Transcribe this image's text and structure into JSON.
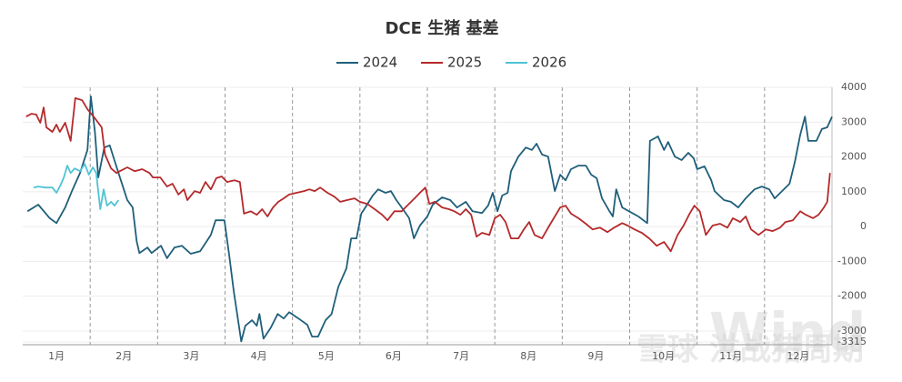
{
  "chart_data": {
    "type": "line",
    "title": "DCE 生猪 基差",
    "watermarks": [
      "雪球 洪战猪周期",
      "Wind"
    ],
    "xlim": [
      0,
      12
    ],
    "xticks": [
      {
        "value": 0.5,
        "label": "1月"
      },
      {
        "value": 1.5,
        "label": "2月"
      },
      {
        "value": 2.5,
        "label": "3月"
      },
      {
        "value": 3.5,
        "label": "4月"
      },
      {
        "value": 4.5,
        "label": "5月"
      },
      {
        "value": 5.5,
        "label": "6月"
      },
      {
        "value": 6.5,
        "label": "7月"
      },
      {
        "value": 7.5,
        "label": "8月"
      },
      {
        "value": 8.5,
        "label": "9月"
      },
      {
        "value": 9.5,
        "label": "10月"
      },
      {
        "value": 10.5,
        "label": "11月"
      },
      {
        "value": 11.5,
        "label": "12月"
      }
    ],
    "ylim": [
      -3315,
      4000
    ],
    "yticks": [
      -3315,
      -3000,
      -2000,
      -1000,
      0,
      1000,
      2000,
      3000,
      4000
    ],
    "grid": true,
    "legend": "top",
    "series": [
      {
        "name": "2024",
        "color": "#1f5f7a",
        "x": [
          0.07,
          0.23,
          0.4,
          0.5,
          0.63,
          0.74,
          0.85,
          0.96,
          1.01,
          1.07,
          1.12,
          1.21,
          1.29,
          1.42,
          1.55,
          1.63,
          1.69,
          1.73,
          1.85,
          1.91,
          2.05,
          2.14,
          2.25,
          2.36,
          2.49,
          2.63,
          2.79,
          2.86,
          2.99,
          3.06,
          3.13,
          3.2,
          3.24,
          3.3,
          3.4,
          3.47,
          3.51,
          3.57,
          3.68,
          3.78,
          3.87,
          3.95,
          4.09,
          4.22,
          4.29,
          4.38,
          4.49,
          4.58,
          4.68,
          4.8,
          4.87,
          4.95,
          5.02,
          5.08,
          5.19,
          5.27,
          5.38,
          5.46,
          5.54,
          5.62,
          5.73,
          5.8,
          5.89,
          6.0,
          6.08,
          6.22,
          6.34,
          6.44,
          6.57,
          6.67,
          6.81,
          6.9,
          6.97,
          7.04,
          7.11,
          7.19,
          7.24,
          7.35,
          7.46,
          7.55,
          7.62,
          7.7,
          7.79,
          7.89,
          7.97,
          8.05,
          8.13,
          8.24,
          8.35,
          8.43,
          8.51,
          8.59,
          8.7,
          8.75,
          8.8,
          8.89,
          8.99,
          9.13,
          9.26,
          9.3,
          9.42,
          9.51,
          9.57,
          9.67,
          9.77,
          9.87,
          9.95,
          10.0,
          10.11,
          10.21,
          10.26,
          10.4,
          10.5,
          10.61,
          10.72,
          10.85,
          10.96,
          11.07,
          11.15,
          11.26,
          11.37,
          11.45,
          11.53,
          11.6,
          11.65,
          11.77,
          11.85,
          11.93,
          12.0
        ],
        "values": [
          440,
          630,
          240,
          100,
          550,
          1070,
          1540,
          2200,
          3740,
          2720,
          1410,
          2270,
          2330,
          1540,
          760,
          550,
          -420,
          -760,
          -600,
          -760,
          -550,
          -910,
          -600,
          -550,
          -780,
          -710,
          -240,
          180,
          180,
          -810,
          -1860,
          -2770,
          -3300,
          -2850,
          -2690,
          -2850,
          -2510,
          -3220,
          -2900,
          -2510,
          -2640,
          -2460,
          -2640,
          -2820,
          -3160,
          -3160,
          -2690,
          -2510,
          -1730,
          -1200,
          -340,
          -340,
          370,
          550,
          890,
          1070,
          970,
          1020,
          760,
          550,
          240,
          -340,
          30,
          290,
          630,
          840,
          760,
          550,
          710,
          440,
          390,
          600,
          970,
          440,
          890,
          970,
          1590,
          2010,
          2270,
          2200,
          2380,
          2070,
          2010,
          1020,
          1490,
          1330,
          1650,
          1750,
          1750,
          1490,
          1390,
          810,
          440,
          290,
          1070,
          550,
          440,
          290,
          100,
          2460,
          2590,
          2200,
          2430,
          2010,
          1910,
          2120,
          1960,
          1650,
          1730,
          1330,
          1020,
          760,
          710,
          550,
          810,
          1070,
          1150,
          1070,
          810,
          1020,
          1230,
          1860,
          2640,
          3160,
          2460,
          2460,
          2800,
          2850,
          3160
        ]
      },
      {
        "name": "2025",
        "color": "#b5292b",
        "x": [
          0.05,
          0.13,
          0.2,
          0.26,
          0.31,
          0.35,
          0.44,
          0.5,
          0.55,
          0.63,
          0.71,
          0.78,
          0.88,
          0.96,
          1.07,
          1.17,
          1.22,
          1.31,
          1.39,
          1.44,
          1.55,
          1.66,
          1.77,
          1.88,
          1.93,
          2.04,
          2.14,
          2.22,
          2.31,
          2.39,
          2.44,
          2.55,
          2.63,
          2.71,
          2.79,
          2.87,
          2.95,
          3.03,
          3.14,
          3.22,
          3.28,
          3.38,
          3.47,
          3.55,
          3.63,
          3.71,
          3.79,
          3.87,
          3.95,
          4.06,
          4.17,
          4.25,
          4.33,
          4.41,
          4.52,
          4.62,
          4.71,
          4.81,
          4.92,
          5.0,
          5.11,
          5.22,
          5.33,
          5.41,
          5.51,
          5.62,
          5.7,
          5.81,
          5.89,
          5.97,
          6.03,
          6.11,
          6.22,
          6.32,
          6.4,
          6.49,
          6.57,
          6.65,
          6.73,
          6.81,
          6.92,
          7.0,
          7.08,
          7.16,
          7.24,
          7.35,
          7.43,
          7.51,
          7.59,
          7.7,
          7.81,
          7.89,
          7.97,
          8.05,
          8.13,
          8.24,
          8.35,
          8.45,
          8.56,
          8.67,
          8.77,
          8.89,
          8.97,
          9.07,
          9.18,
          9.29,
          9.4,
          9.51,
          9.61,
          9.71,
          9.8,
          9.88,
          9.96,
          10.04,
          10.13,
          10.23,
          10.34,
          10.45,
          10.53,
          10.64,
          10.72,
          10.8,
          10.91,
          11.02,
          11.12,
          11.23,
          11.31,
          11.42,
          11.53,
          11.61,
          11.72,
          11.8,
          11.88,
          11.93,
          11.97
        ],
        "values": [
          3160,
          3240,
          3220,
          2980,
          3420,
          2850,
          2720,
          2930,
          2720,
          2980,
          2460,
          3690,
          3630,
          3370,
          3110,
          2850,
          2070,
          1670,
          1540,
          1590,
          1700,
          1590,
          1650,
          1540,
          1410,
          1410,
          1150,
          1230,
          920,
          1070,
          760,
          1020,
          970,
          1280,
          1070,
          1390,
          1440,
          1280,
          1330,
          1280,
          370,
          440,
          340,
          500,
          290,
          550,
          710,
          810,
          920,
          970,
          1020,
          1070,
          1020,
          1120,
          970,
          860,
          710,
          760,
          810,
          710,
          650,
          500,
          340,
          180,
          440,
          440,
          600,
          810,
          970,
          1120,
          650,
          710,
          550,
          500,
          440,
          340,
          500,
          340,
          -290,
          -180,
          -240,
          240,
          340,
          130,
          -340,
          -340,
          -80,
          130,
          -240,
          -340,
          30,
          290,
          550,
          600,
          370,
          240,
          80,
          -80,
          -30,
          -160,
          -30,
          100,
          30,
          -80,
          -180,
          -340,
          -550,
          -440,
          -710,
          -240,
          30,
          340,
          600,
          440,
          -240,
          30,
          80,
          -30,
          240,
          130,
          290,
          -80,
          -240,
          -80,
          -130,
          -30,
          130,
          180,
          440,
          340,
          240,
          340,
          550,
          710,
          1540
        ]
      },
      {
        "name": "2026",
        "color": "#4fc3d4",
        "x": [
          0.16,
          0.23,
          0.34,
          0.44,
          0.5,
          0.55,
          0.61,
          0.66,
          0.71,
          0.77,
          0.85,
          0.92,
          0.98,
          1.04,
          1.09,
          1.15,
          1.2,
          1.25,
          1.31,
          1.36,
          1.42
        ],
        "values": [
          1120,
          1150,
          1120,
          1120,
          970,
          1150,
          1410,
          1750,
          1540,
          1670,
          1590,
          1800,
          1490,
          1700,
          1540,
          500,
          1070,
          600,
          710,
          600,
          760
        ]
      }
    ]
  }
}
